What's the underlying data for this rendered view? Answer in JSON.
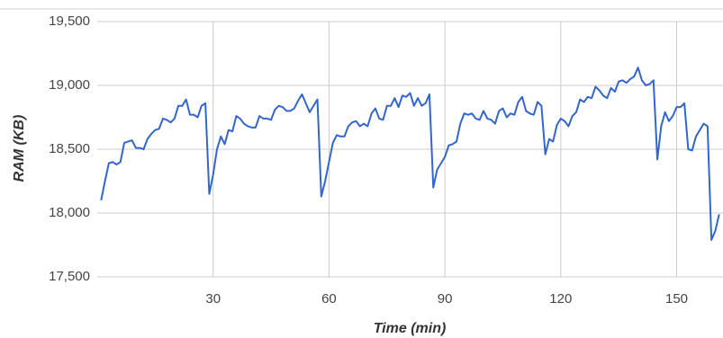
{
  "chart_data": {
    "type": "line",
    "xlabel": "Time (min)",
    "ylabel": "RAM (KB)",
    "x": [
      1,
      2,
      3,
      4,
      5,
      6,
      7,
      8,
      9,
      10,
      11,
      12,
      13,
      14,
      15,
      16,
      17,
      18,
      19,
      20,
      21,
      22,
      23,
      24,
      25,
      26,
      27,
      28,
      29,
      30,
      31,
      32,
      33,
      34,
      35,
      36,
      37,
      38,
      39,
      40,
      41,
      42,
      43,
      44,
      45,
      46,
      47,
      48,
      49,
      50,
      51,
      52,
      53,
      54,
      55,
      56,
      57,
      58,
      59,
      60,
      61,
      62,
      63,
      64,
      65,
      66,
      67,
      68,
      69,
      70,
      71,
      72,
      73,
      74,
      75,
      76,
      77,
      78,
      79,
      80,
      81,
      82,
      83,
      84,
      85,
      86,
      87,
      88,
      89,
      90,
      91,
      92,
      93,
      94,
      95,
      96,
      97,
      98,
      99,
      100,
      101,
      102,
      103,
      104,
      105,
      106,
      107,
      108,
      109,
      110,
      111,
      112,
      113,
      114,
      115,
      116,
      117,
      118,
      119,
      120,
      121,
      122,
      123,
      124,
      125,
      126,
      127,
      128,
      129,
      130,
      131,
      132,
      133,
      134,
      135,
      136,
      137,
      138,
      139,
      140,
      141,
      142,
      143,
      144,
      145,
      146,
      147,
      148,
      149,
      150,
      151,
      152,
      153,
      154,
      155,
      156,
      157,
      158,
      159,
      160,
      161
    ],
    "series": [
      {
        "name": "RAM",
        "color": "#3366cc",
        "values": [
          18100,
          18250,
          18390,
          18400,
          18380,
          18400,
          18550,
          18560,
          18570,
          18510,
          18510,
          18500,
          18580,
          18620,
          18650,
          18660,
          18740,
          18730,
          18710,
          18740,
          18840,
          18840,
          18890,
          18770,
          18770,
          18750,
          18840,
          18860,
          18150,
          18300,
          18500,
          18600,
          18540,
          18650,
          18640,
          18760,
          18740,
          18700,
          18680,
          18670,
          18670,
          18760,
          18740,
          18740,
          18730,
          18810,
          18840,
          18830,
          18800,
          18800,
          18820,
          18880,
          18930,
          18860,
          18790,
          18840,
          18890,
          18130,
          18250,
          18400,
          18550,
          18610,
          18600,
          18600,
          18680,
          18710,
          18720,
          18680,
          18700,
          18680,
          18780,
          18820,
          18740,
          18730,
          18840,
          18840,
          18900,
          18830,
          18920,
          18910,
          18940,
          18840,
          18900,
          18840,
          18860,
          18930,
          18200,
          18340,
          18390,
          18440,
          18530,
          18540,
          18560,
          18700,
          18780,
          18770,
          18780,
          18740,
          18730,
          18800,
          18740,
          18730,
          18700,
          18800,
          18820,
          18750,
          18780,
          18770,
          18870,
          18910,
          18800,
          18780,
          18770,
          18870,
          18840,
          18460,
          18580,
          18560,
          18690,
          18740,
          18720,
          18680,
          18760,
          18790,
          18890,
          18870,
          18910,
          18900,
          18990,
          18960,
          18920,
          18900,
          18980,
          18950,
          19030,
          19040,
          19020,
          19050,
          19070,
          19140,
          19040,
          19000,
          19010,
          19040,
          18420,
          18680,
          18790,
          18720,
          18760,
          18830,
          18830,
          18860,
          18500,
          18490,
          18600,
          18650,
          18700,
          18680,
          17790,
          17860,
          17990
        ]
      }
    ],
    "xlim": [
      0,
      162
    ],
    "xticks": [
      30,
      60,
      90,
      120,
      150
    ],
    "ylim": [
      17500,
      19500
    ],
    "yticks": [
      {
        "value": 17500,
        "label": "17,500"
      },
      {
        "value": 18000,
        "label": "18,000"
      },
      {
        "value": 18500,
        "label": "18,500"
      },
      {
        "value": 19000,
        "label": "19,000"
      },
      {
        "value": 19500,
        "label": "19,500"
      }
    ],
    "grid": true
  }
}
